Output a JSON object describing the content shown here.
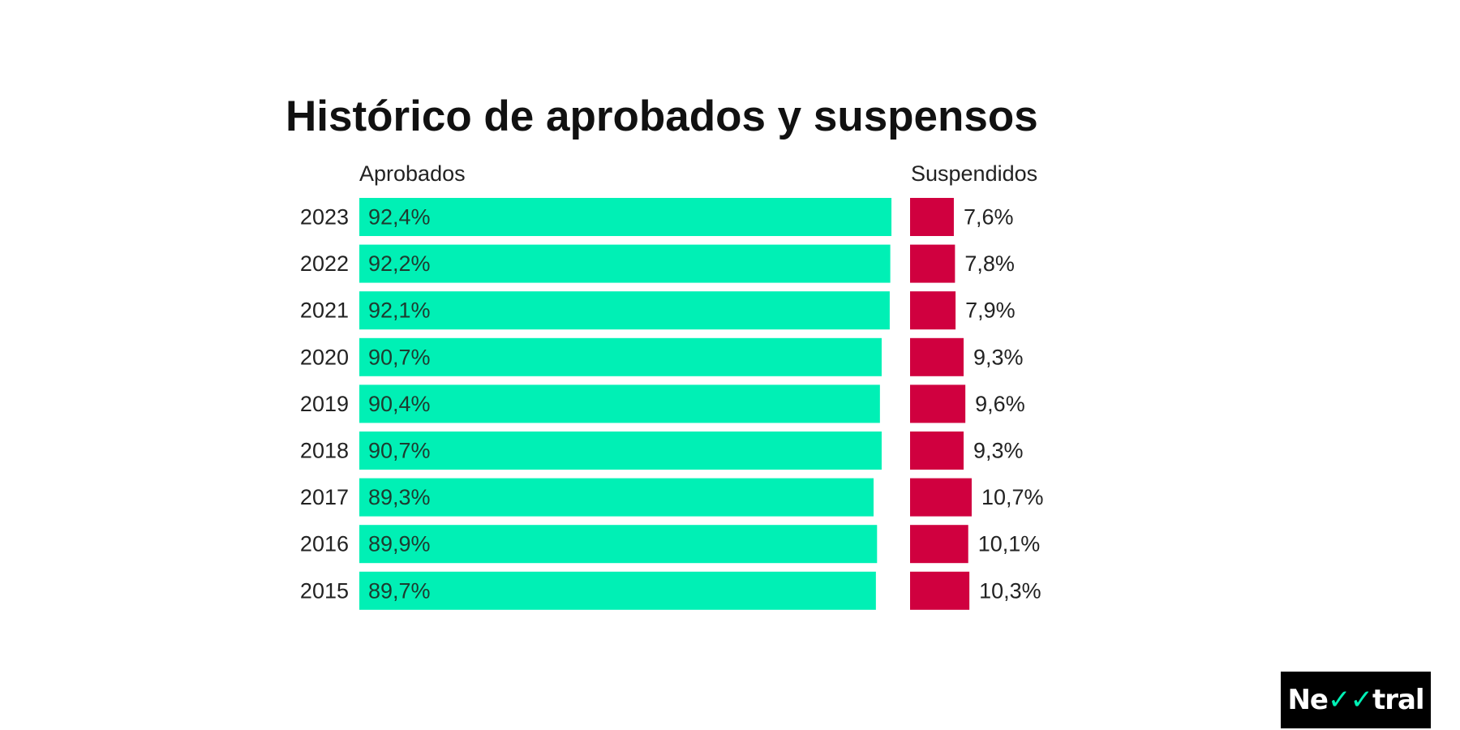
{
  "chart_data": {
    "type": "bar",
    "title": "Histórico de aprobados y suspensos",
    "categories": [
      "2023",
      "2022",
      "2021",
      "2020",
      "2019",
      "2018",
      "2017",
      "2016",
      "2015"
    ],
    "series": [
      {
        "name": "Aprobados",
        "values": [
          92.4,
          92.2,
          92.1,
          90.7,
          90.4,
          90.7,
          89.3,
          89.9,
          89.7
        ],
        "labels": [
          "92,4%",
          "92,2%",
          "92,1%",
          "90,7%",
          "90,4%",
          "90,7%",
          "89,3%",
          "89,9%",
          "89,7%"
        ],
        "color": "#00f0b5"
      },
      {
        "name": "Suspendidos",
        "values": [
          7.6,
          7.8,
          7.9,
          9.3,
          9.6,
          9.3,
          10.7,
          10.1,
          10.3
        ],
        "labels": [
          "7,6%",
          "7,8%",
          "7,9%",
          "9,3%",
          "9,6%",
          "9,3%",
          "10,7%",
          "10,1%",
          "10,3%"
        ],
        "color": "#d0003f"
      }
    ],
    "ylim": [
      0,
      100
    ],
    "legend": "column headers",
    "grid": false
  },
  "logo": {
    "brand": "Newtral",
    "text_before": "Ne",
    "mark": "✓✓",
    "text_after": "tral"
  }
}
